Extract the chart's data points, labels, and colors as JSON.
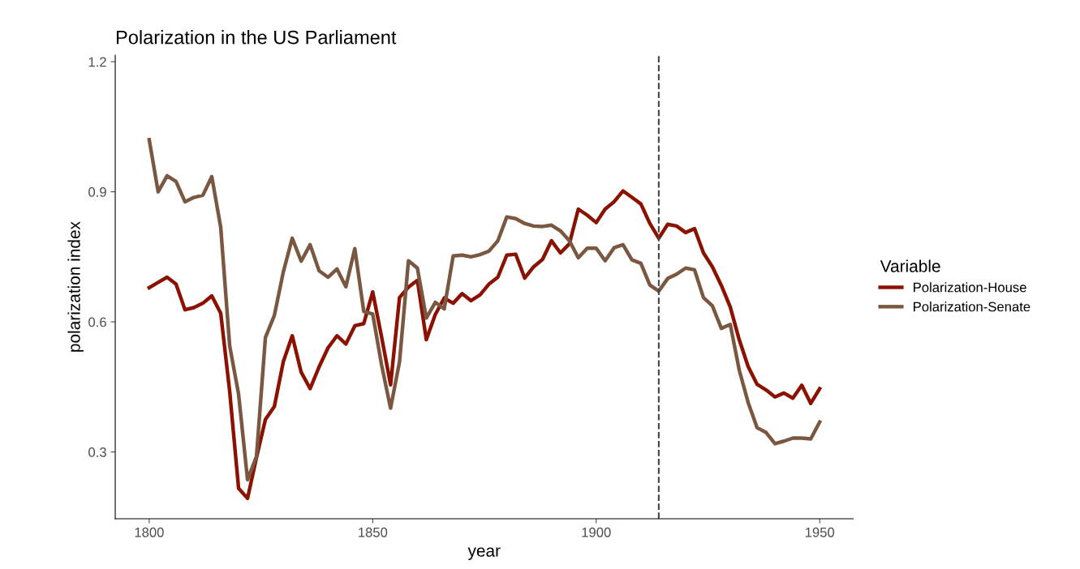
{
  "chart_data": {
    "type": "line",
    "title": "Polarization in the US Parliament",
    "xlabel": "year",
    "ylabel": "polarization index",
    "legend_title": "Variable",
    "x": [
      1800,
      1802,
      1804,
      1806,
      1808,
      1810,
      1812,
      1814,
      1816,
      1818,
      1820,
      1822,
      1824,
      1826,
      1828,
      1830,
      1832,
      1834,
      1836,
      1838,
      1840,
      1842,
      1844,
      1846,
      1848,
      1850,
      1852,
      1854,
      1856,
      1858,
      1860,
      1862,
      1864,
      1866,
      1868,
      1870,
      1872,
      1874,
      1876,
      1878,
      1880,
      1882,
      1884,
      1886,
      1888,
      1890,
      1892,
      1894,
      1896,
      1898,
      1900,
      1902,
      1904,
      1906,
      1908,
      1910,
      1912,
      1914,
      1916,
      1918,
      1920,
      1922,
      1924,
      1926,
      1928,
      1930,
      1932,
      1934,
      1936,
      1938,
      1940,
      1942,
      1944,
      1946,
      1948,
      1950
    ],
    "series": [
      {
        "name": "Polarization-House",
        "color": "#8b1200",
        "values": [
          0.679,
          0.691,
          0.703,
          0.687,
          0.628,
          0.633,
          0.643,
          0.66,
          0.62,
          0.44,
          0.216,
          0.193,
          0.287,
          0.375,
          0.405,
          0.508,
          0.568,
          0.484,
          0.446,
          0.496,
          0.54,
          0.568,
          0.549,
          0.591,
          0.596,
          0.669,
          0.565,
          0.455,
          0.656,
          0.68,
          0.696,
          0.559,
          0.617,
          0.655,
          0.643,
          0.665,
          0.649,
          0.662,
          0.687,
          0.703,
          0.754,
          0.756,
          0.701,
          0.727,
          0.744,
          0.787,
          0.759,
          0.78,
          0.86,
          0.846,
          0.829,
          0.86,
          0.877,
          0.902,
          0.887,
          0.872,
          0.827,
          0.793,
          0.825,
          0.821,
          0.806,
          0.815,
          0.759,
          0.727,
          0.684,
          0.634,
          0.559,
          0.497,
          0.456,
          0.443,
          0.427,
          0.436,
          0.424,
          0.454,
          0.412,
          0.446
        ]
      },
      {
        "name": "Polarization-Senate",
        "color": "#7a5740",
        "values": [
          1.02,
          0.9,
          0.937,
          0.924,
          0.877,
          0.887,
          0.892,
          0.935,
          0.818,
          0.545,
          0.433,
          0.236,
          0.29,
          0.564,
          0.615,
          0.715,
          0.793,
          0.74,
          0.778,
          0.718,
          0.703,
          0.722,
          0.681,
          0.769,
          0.624,
          0.618,
          0.5,
          0.401,
          0.508,
          0.741,
          0.724,
          0.609,
          0.645,
          0.63,
          0.752,
          0.754,
          0.75,
          0.755,
          0.763,
          0.787,
          0.842,
          0.838,
          0.827,
          0.821,
          0.82,
          0.823,
          0.81,
          0.787,
          0.748,
          0.77,
          0.77,
          0.741,
          0.771,
          0.778,
          0.743,
          0.735,
          0.685,
          0.671,
          0.7,
          0.71,
          0.724,
          0.72,
          0.656,
          0.637,
          0.585,
          0.594,
          0.489,
          0.414,
          0.356,
          0.345,
          0.319,
          0.325,
          0.332,
          0.332,
          0.33,
          0.369
        ]
      }
    ],
    "xlim": [
      1792.4,
      1957.5
    ],
    "ylim": [
      0.146,
      1.215
    ],
    "xticks": [
      1800,
      1850,
      1900,
      1950
    ],
    "yticks": [
      0.3,
      0.6,
      0.9,
      1.2
    ],
    "ref_lines": [
      {
        "axis": "x",
        "value": 1914,
        "label": null,
        "color": "#444444",
        "line_style": "dashed"
      }
    ],
    "grid": false,
    "legend": "right",
    "line_style": "solid",
    "marker": "none"
  }
}
